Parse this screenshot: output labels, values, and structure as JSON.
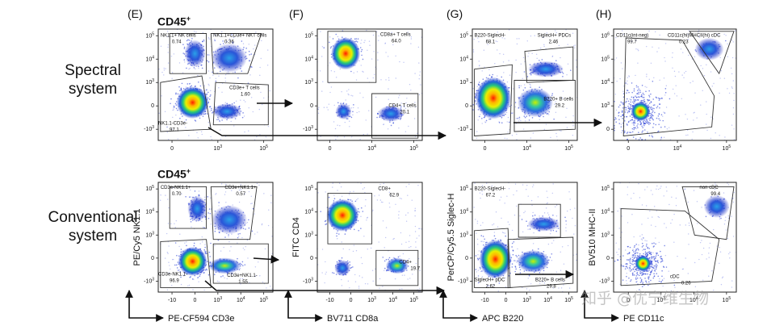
{
  "row_labels": [
    {
      "line1": "Spectral",
      "line2": "system"
    },
    {
      "line1": "Conventional",
      "line2": "system"
    }
  ],
  "panel_letters": [
    "(E)",
    "(F)",
    "(G)",
    "(H)"
  ],
  "cd45_label": "CD45",
  "cd45_sup": "+",
  "watermark": "知乎 @优宁维生物",
  "chart_data": [
    {
      "type": "scatter",
      "id": "spectral-E",
      "xlabel": "",
      "ylabel": "",
      "x_ticks": [
        "0",
        "10^3",
        "10^5"
      ],
      "y_ticks": [
        "10^5",
        "10^4",
        "10^3",
        "0",
        "-10^3"
      ],
      "gates": [
        {
          "label": "NK1.1+ NK cells",
          "value": "0.74"
        },
        {
          "label": "NK1.1+CD3e+ NKT cells",
          "value": "0.36"
        },
        {
          "label": "CD3e+ T cells",
          "value": "1.60"
        },
        {
          "label": "NK1.1-CD3e-",
          "value": "97.1"
        }
      ]
    },
    {
      "type": "scatter",
      "id": "spectral-F",
      "xlabel": "",
      "ylabel": "",
      "x_ticks": [
        "0",
        "10^4",
        "10^5"
      ],
      "y_ticks": [
        "10^5",
        "10^4",
        "10^3",
        "0",
        "-10^3"
      ],
      "gates": [
        {
          "label": "CD8a+ T cells",
          "value": "64.0"
        },
        {
          "label": "CD4+ T cells",
          "value": "20.1"
        }
      ]
    },
    {
      "type": "scatter",
      "id": "spectral-G",
      "xlabel": "",
      "ylabel": "",
      "x_ticks": [
        "0",
        "10^4",
        "10^5"
      ],
      "y_ticks": [
        "10^5",
        "10^4",
        "10^3",
        "0",
        "-10^3"
      ],
      "gates": [
        {
          "label": "B220-SiglecH-",
          "value": "68.1"
        },
        {
          "label": "SiglecH+ PDCs",
          "value": "2.46"
        },
        {
          "label": "B220+ B cells",
          "value": "29.2"
        }
      ]
    },
    {
      "type": "scatter",
      "id": "spectral-H",
      "xlabel": "",
      "ylabel": "",
      "x_ticks": [
        "0",
        "10^4",
        "10^5"
      ],
      "y_ticks": [
        "10^6",
        "10^5",
        "10^4",
        "10^3",
        "0"
      ],
      "gates": [
        {
          "label": "CD11c(int-neg)",
          "value": "99.7"
        },
        {
          "label": "CD11c(hi)MHCII(hi) cDC",
          "value": "0.23"
        }
      ]
    },
    {
      "type": "scatter",
      "id": "conventional-E",
      "xlabel": "PE-CF594 CD3e",
      "ylabel": "PE/Cy5 NK1.1",
      "x_ticks": [
        "-10",
        "0",
        "10^3",
        "10^4",
        "10^5"
      ],
      "y_ticks": [
        "10^5",
        "10^4",
        "10^3",
        "0",
        "-10^3"
      ],
      "gates": [
        {
          "label": "CD3e-NK1.1+",
          "value": "0.70"
        },
        {
          "label": "CD3e+NK1.1+",
          "value": "0.57"
        },
        {
          "label": "CD3e-NK1.1-",
          "value": "96.9"
        },
        {
          "label": "CD3e+NK1.1-",
          "value": "1.55"
        }
      ]
    },
    {
      "type": "scatter",
      "id": "conventional-F",
      "xlabel": "BV711 CD8a",
      "ylabel": "FITC CD4",
      "x_ticks": [
        "-10",
        "0",
        "10^3",
        "10^4",
        "10^5"
      ],
      "y_ticks": [
        "10^5",
        "10^4",
        "10^3",
        "0",
        "-10^3"
      ],
      "gates": [
        {
          "label": "CD8+",
          "value": "62.9"
        },
        {
          "label": "CD4+",
          "value": "19.7"
        }
      ]
    },
    {
      "type": "scatter",
      "id": "conventional-G",
      "xlabel": "APC B220",
      "ylabel": "PerCP/Cy5.5 Siglec-H",
      "x_ticks": [
        "-10",
        "0",
        "10^3",
        "10^4",
        "10^5"
      ],
      "y_ticks": [
        "10^5",
        "10^4",
        "10^3",
        "0",
        "-10^3"
      ],
      "gates": [
        {
          "label": "SiglecH+ pDC",
          "value": "2.62"
        },
        {
          "label": "B220-SiglecH-",
          "value": "67.2"
        },
        {
          "label": "B220+ B cells",
          "value": "29.8"
        }
      ]
    },
    {
      "type": "scatter",
      "id": "conventional-H",
      "xlabel": "PE CD11c",
      "ylabel": "BV510 MHC-II",
      "x_ticks": [
        "0",
        "10^3",
        "10^4",
        "10^5"
      ],
      "y_ticks": [
        "10^5",
        "10^4",
        "10^3",
        "0",
        "-10^3"
      ],
      "gates": [
        {
          "label": "cDC",
          "value": "0.26"
        },
        {
          "label": "non cDC",
          "value": "99.4"
        }
      ]
    }
  ]
}
